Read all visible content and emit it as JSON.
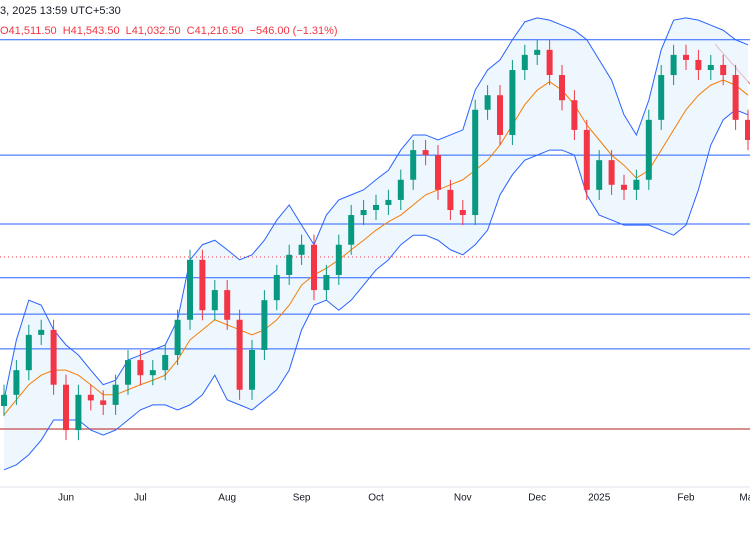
{
  "chart_data": {
    "type": "candlestick",
    "title": "3, 2025 13:59 UTC+5:30",
    "ohlc_labels": [
      "O41,511.50",
      "H41,543.50",
      "L41,032.50",
      "C41,216.50",
      "−546.00 (−1.31%)"
    ],
    "categories": [
      null,
      null,
      null,
      null,
      null,
      "Jun",
      null,
      null,
      null,
      null,
      null,
      "Jul",
      null,
      null,
      null,
      null,
      null,
      null,
      "Aug",
      null,
      null,
      null,
      null,
      null,
      "Sep",
      null,
      null,
      null,
      null,
      null,
      "Oct",
      null,
      null,
      null,
      null,
      null,
      null,
      "Nov",
      null,
      null,
      null,
      null,
      null,
      "Dec",
      null,
      null,
      null,
      null,
      "2025",
      null,
      null,
      null,
      null,
      null,
      null,
      "Feb",
      null,
      null,
      null,
      null,
      "Mar"
    ],
    "open": [
      38500,
      38700,
      39140,
      39770,
      39860,
      38880,
      38070,
      38700,
      38600,
      38520,
      38880,
      39320,
      39050,
      39140,
      39410,
      40040,
      41110,
      40210,
      40570,
      40040,
      38790,
      39500,
      40390,
      40840,
      41200,
      41380,
      40570,
      40840,
      41380,
      41910,
      42000,
      42090,
      42180,
      42540,
      43070,
      42980,
      42360,
      42000,
      41910,
      43790,
      44050,
      43340,
      44500,
      44770,
      44860,
      44410,
      43960,
      43430,
      42360,
      42890,
      42450,
      42360,
      42540,
      43610,
      44410,
      44770,
      44680,
      44500,
      44590,
      44410,
      43610
    ],
    "high": [
      38880,
      39320,
      39950,
      40040,
      40040,
      39060,
      38880,
      38880,
      38780,
      39060,
      39500,
      39500,
      39320,
      39590,
      40220,
      41290,
      41290,
      40750,
      40750,
      40220,
      39680,
      40570,
      41020,
      41380,
      41560,
      41560,
      41020,
      41560,
      42090,
      42180,
      42270,
      42360,
      42720,
      43250,
      43250,
      43160,
      42540,
      42180,
      43970,
      44230,
      44230,
      44680,
      44950,
      45040,
      45040,
      44590,
      44140,
      43610,
      43070,
      43070,
      42630,
      42720,
      43790,
      44590,
      44950,
      44950,
      44860,
      44770,
      44770,
      44590,
      43790
    ],
    "low": [
      38320,
      38520,
      38960,
      39590,
      38700,
      37890,
      37890,
      38420,
      38340,
      38340,
      38700,
      38870,
      38870,
      38960,
      39230,
      39860,
      40030,
      40030,
      39860,
      38610,
      38610,
      39320,
      40210,
      40660,
      41020,
      40390,
      40390,
      40660,
      41200,
      41730,
      41820,
      41910,
      42000,
      42360,
      42800,
      42180,
      41820,
      41730,
      41730,
      43610,
      43160,
      43160,
      44320,
      44590,
      44230,
      43780,
      43250,
      42180,
      42180,
      42270,
      42180,
      42180,
      42360,
      43430,
      44230,
      44500,
      44320,
      44320,
      44230,
      43430,
      43070
    ],
    "close": [
      38700,
      39140,
      39770,
      39860,
      38880,
      38070,
      38700,
      38600,
      38520,
      38880,
      39320,
      39050,
      39140,
      39410,
      40040,
      41110,
      40210,
      40570,
      40040,
      38790,
      39500,
      40390,
      40840,
      41200,
      41380,
      40570,
      40840,
      41380,
      41910,
      42000,
      42090,
      42180,
      42540,
      43070,
      42980,
      42360,
      42000,
      41910,
      43790,
      44050,
      43340,
      44500,
      44770,
      44860,
      44410,
      43960,
      43430,
      42360,
      42890,
      42450,
      42360,
      42540,
      43610,
      44410,
      44770,
      44680,
      44500,
      44590,
      44410,
      43610,
      43250
    ],
    "up_color": "#089981",
    "down_color": "#f23645",
    "overlays": [
      {
        "color": "#f57c00",
        "values": [
          38340,
          38610,
          38880,
          39050,
          39140,
          39140,
          39050,
          38880,
          38700,
          38700,
          38790,
          38880,
          38960,
          39050,
          39320,
          39680,
          39860,
          40040,
          39950,
          39860,
          39770,
          39860,
          40040,
          40300,
          40660,
          40840,
          40960,
          41110,
          41290,
          41460,
          41640,
          41790,
          41910,
          42090,
          42270,
          42360,
          42450,
          42540,
          42710,
          42890,
          43160,
          43520,
          43880,
          44140,
          44290,
          44140,
          43880,
          43520,
          43250,
          42980,
          42800,
          42570,
          42710,
          43070,
          43430,
          43790,
          44050,
          44230,
          44320,
          44230,
          44050
        ]
      },
      {
        "color": "#2962ff",
        "values": [
          38610,
          39680,
          40390,
          40300,
          39860,
          39590,
          39410,
          39140,
          38880,
          38960,
          39320,
          39410,
          39500,
          39590,
          40040,
          41110,
          41380,
          41460,
          41290,
          41110,
          41200,
          41460,
          41820,
          42090,
          41730,
          41380,
          41910,
          42180,
          42270,
          42360,
          42540,
          42710,
          43070,
          43340,
          43340,
          43250,
          43340,
          43430,
          44140,
          44500,
          44680,
          45040,
          45360,
          45430,
          45390,
          45300,
          45210,
          45040,
          44680,
          44320,
          43700,
          43340,
          43960,
          44860,
          45390,
          45430,
          45390,
          45300,
          45210,
          45040,
          44950
        ]
      },
      {
        "color": "#2962ff",
        "values": [
          37360,
          37450,
          37630,
          37890,
          38250,
          38250,
          38250,
          38070,
          37980,
          38070,
          38250,
          38430,
          38520,
          38520,
          38430,
          38520,
          38700,
          39050,
          38610,
          38520,
          38430,
          38610,
          38790,
          39140,
          39860,
          40300,
          40390,
          40210,
          40390,
          40660,
          40930,
          41110,
          41380,
          41550,
          41550,
          41460,
          41290,
          41200,
          41380,
          41640,
          42270,
          42630,
          42890,
          42980,
          43070,
          43070,
          42980,
          42270,
          41910,
          41820,
          41730,
          41730,
          41730,
          41640,
          41550,
          41730,
          42360,
          43160,
          43610,
          43790,
          43700
        ]
      }
    ],
    "band_fill": "#e3f2fd",
    "levels": [
      {
        "value": 45040,
        "color": "#2962ff"
      },
      {
        "value": 42980,
        "color": "#2962ff"
      },
      {
        "value": 41750,
        "color": "#2962ff"
      },
      {
        "value": 40790,
        "color": "#2962ff"
      },
      {
        "value": 40140,
        "color": "#2962ff"
      },
      {
        "value": 39520,
        "color": "#2962ff"
      },
      {
        "value": 38090,
        "color": "#b71c1c"
      },
      {
        "value": 41160,
        "color": "#f23645",
        "dashed": true
      }
    ],
    "ylim": [
      37000,
      45750
    ]
  }
}
